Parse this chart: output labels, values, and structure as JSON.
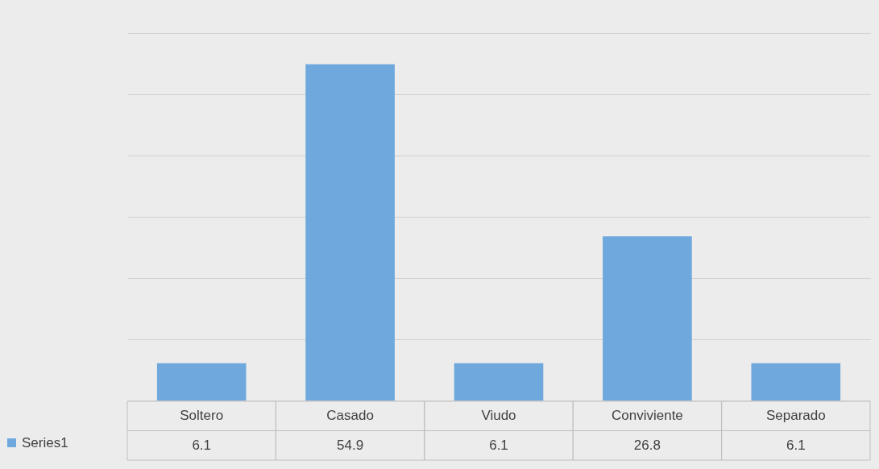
{
  "chart_data": {
    "type": "bar",
    "categories": [
      "Soltero",
      "Casado",
      "Viudo",
      "Conviviente",
      "Separado"
    ],
    "series": [
      {
        "name": "Series1",
        "color": "#6fa8dc",
        "values": [
          6.1,
          54.9,
          6.1,
          26.8,
          6.1
        ]
      }
    ],
    "ylim": [
      0,
      60
    ],
    "yticks": [
      {
        "value": 0,
        "label": null
      },
      {
        "value": 10,
        "label": null
      },
      {
        "value": 20,
        "label": null
      },
      {
        "value": 30,
        "label": null
      },
      {
        "value": 40,
        "label": null
      },
      {
        "value": 50,
        "label": null
      },
      {
        "value": 60,
        "label": null
      }
    ],
    "grid": "y",
    "tick_labels": "x",
    "data_labels": true,
    "legend": "bottom left"
  }
}
